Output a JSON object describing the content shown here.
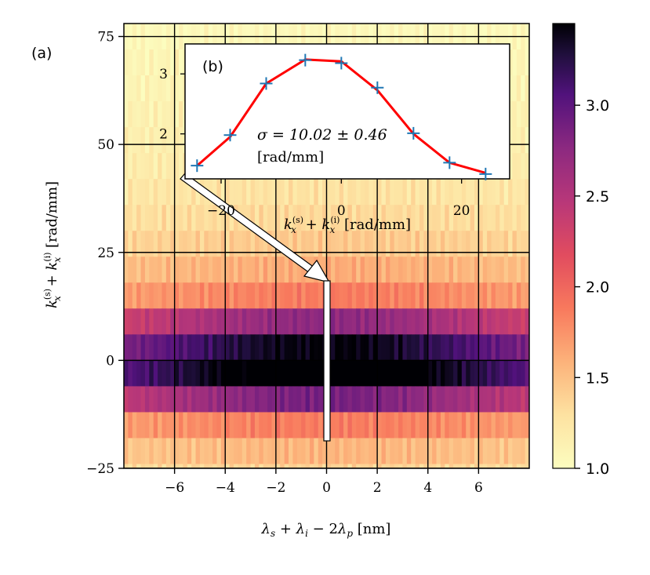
{
  "chart_data": [
    {
      "panel": "(a)",
      "type": "heatmap",
      "xlabel": "λ_s + λ_i − 2λ_p [nm]",
      "ylabel": "k_x^(s) + k_x^(i) [rad/mm]",
      "xlim": [
        -8,
        8
      ],
      "ylim": [
        -25,
        78
      ],
      "xticks": [
        -6,
        -4,
        -2,
        0,
        2,
        4,
        6
      ],
      "yticks": [
        -25,
        0,
        25,
        50,
        75
      ],
      "xtick_labels": [
        "−6",
        "−4",
        "−2",
        "0",
        "2",
        "4",
        "6"
      ],
      "ytick_labels": [
        "−25",
        "0",
        "25",
        "50",
        "75"
      ],
      "grid": true,
      "colormap": "magma_r",
      "rows": [
        {
          "y0": 72,
          "y1": 78,
          "value": 1.05
        },
        {
          "y0": 66,
          "y1": 72,
          "value": 1.1
        },
        {
          "y0": 60,
          "y1": 66,
          "value": 1.12
        },
        {
          "y0": 54,
          "y1": 60,
          "value": 1.15
        },
        {
          "y0": 48,
          "y1": 54,
          "value": 1.18
        },
        {
          "y0": 42,
          "y1": 48,
          "value": 1.22
        },
        {
          "y0": 36,
          "y1": 42,
          "value": 1.28
        },
        {
          "y0": 30,
          "y1": 36,
          "value": 1.35
        },
        {
          "y0": 24,
          "y1": 30,
          "value": 1.45
        },
        {
          "y0": 18,
          "y1": 24,
          "value": 1.6
        },
        {
          "y0": 12,
          "y1": 18,
          "value": 1.8
        },
        {
          "y0": 6,
          "y1": 12,
          "value": 2.5
        },
        {
          "y0": 0,
          "y1": 6,
          "value": 3.05
        },
        {
          "y0": -6,
          "y1": 0,
          "value": 3.25
        },
        {
          "y0": -12,
          "y1": -6,
          "value": 2.6
        },
        {
          "y0": -18,
          "y1": -12,
          "value": 1.8
        },
        {
          "y0": -24,
          "y1": -18,
          "value": 1.55
        },
        {
          "y0": -25,
          "y1": -24,
          "value": 1.4
        }
      ],
      "colorbar": {
        "min": 1.0,
        "max": 3.45,
        "ticks": [
          1.0,
          1.5,
          2.0,
          2.5,
          3.0
        ],
        "tick_labels": [
          "1.0",
          "1.5",
          "2.0",
          "2.5",
          "3.0"
        ]
      },
      "annotation": {
        "type": "arrow",
        "from_inset_x": -25,
        "segment_x": 0,
        "segment_y": [
          -18,
          18
        ]
      }
    },
    {
      "panel": "(b)",
      "type": "line",
      "xlabel": "k_x^(s) + k_x^(i) [rad/mm]",
      "xlim": [
        -26,
        28
      ],
      "ylim": [
        1.25,
        3.5
      ],
      "xticks": [
        -20,
        0,
        20
      ],
      "yticks": [
        2,
        3
      ],
      "xtick_labels": [
        "−20",
        "0",
        "20"
      ],
      "ytick_labels": [
        "2",
        "3"
      ],
      "annotation": "σ = 10.02 ± 0.46",
      "annotation_unit": "[rad/mm]",
      "series": [
        {
          "style": "markers",
          "marker": "+",
          "color": "#1f77b4",
          "x": [
            -24,
            -18.5,
            -12.5,
            -6,
            0,
            6,
            12,
            18,
            24
          ],
          "y": [
            1.47,
            1.98,
            2.84,
            3.23,
            3.18,
            2.77,
            2.01,
            1.52,
            1.33
          ]
        },
        {
          "style": "line",
          "color": "#ff0000",
          "x": [
            -24,
            -18.5,
            -12.5,
            -6,
            0,
            6,
            12,
            18,
            24
          ],
          "y": [
            1.47,
            1.95,
            2.84,
            3.24,
            3.21,
            2.73,
            2.0,
            1.52,
            1.35
          ]
        }
      ]
    }
  ],
  "labels": {
    "panel_a": "(a)",
    "panel_b": "(b)",
    "sigma": "σ = 10.02 ± 0.46",
    "sigma_unit": "[rad/mm]"
  }
}
